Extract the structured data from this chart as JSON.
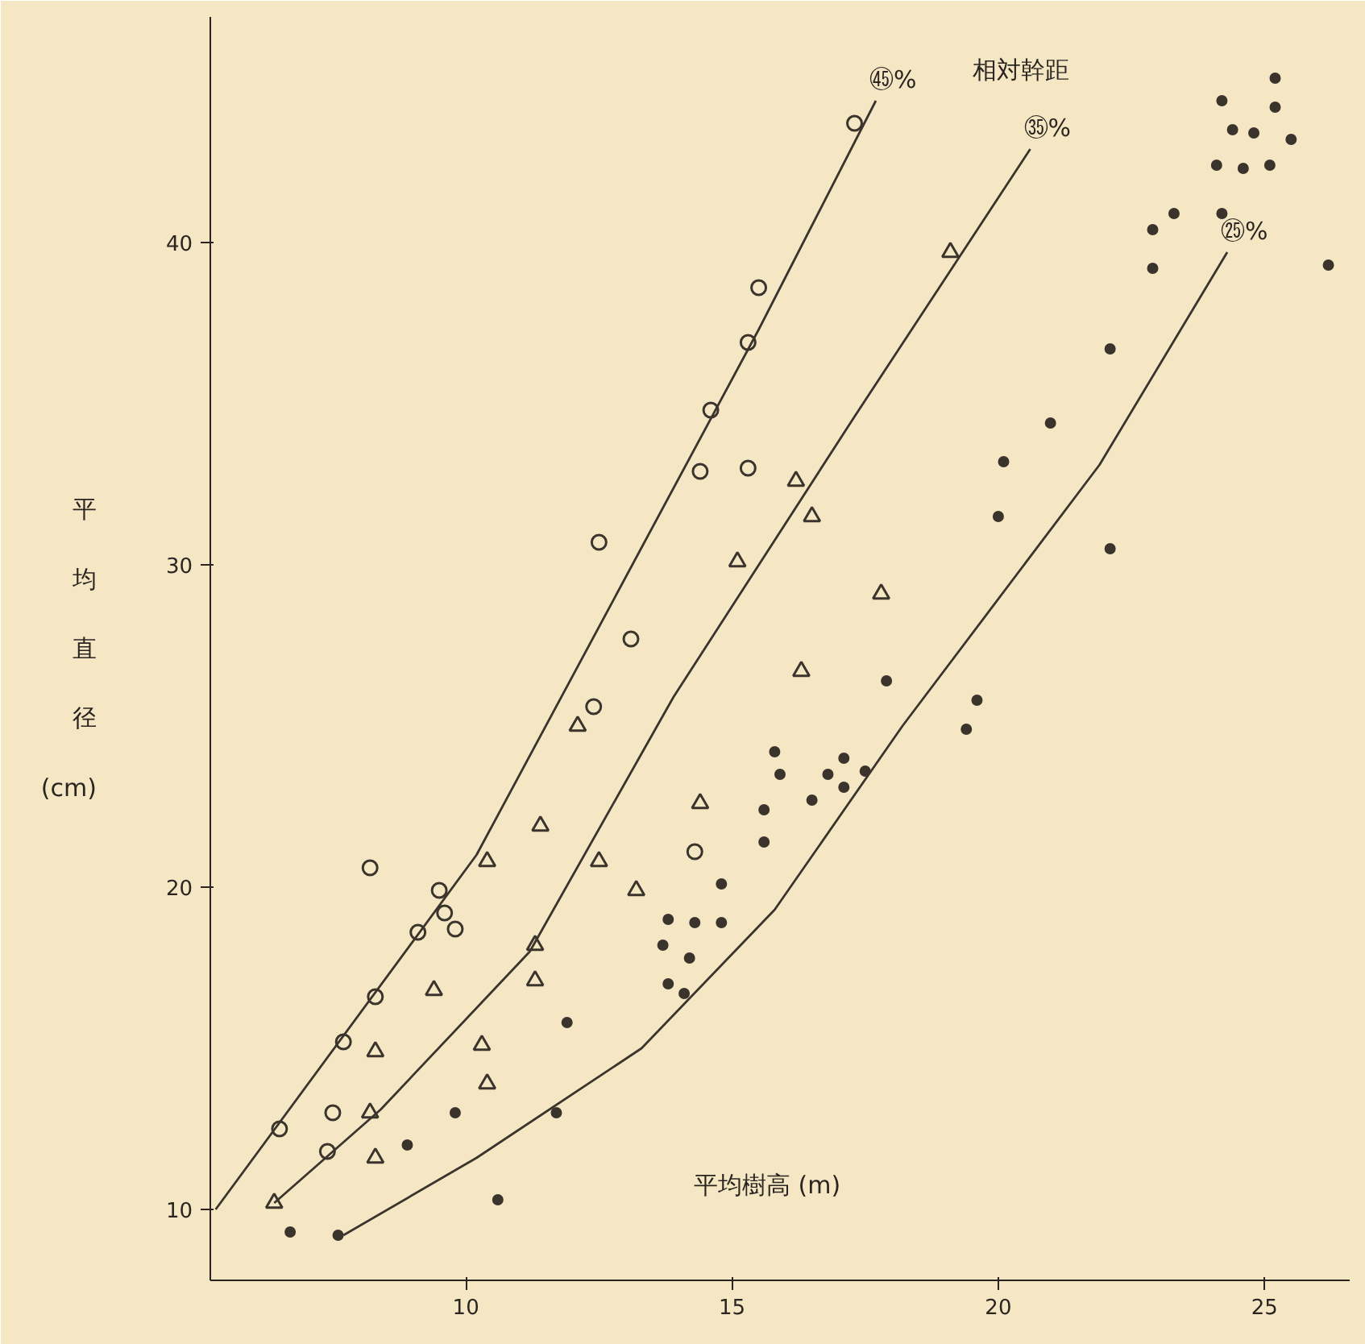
{
  "chart_data": {
    "type": "scatter",
    "xlabel": "平均樹高 (m)",
    "ylabel": "平均直径 (cm)",
    "xlim": [
      5.2,
      26.6
    ],
    "ylim": [
      7.8,
      47
    ],
    "xticks": [
      10,
      15,
      20,
      25
    ],
    "yticks": [
      10,
      20,
      30,
      40
    ],
    "grid": false,
    "legend": false,
    "annotations": [
      "相対幹距"
    ],
    "series": [
      {
        "marker": "circle",
        "color": "#3a342c",
        "x": [
          6.5,
          8.2,
          7.7,
          7.5,
          7.4,
          8.3,
          9.1,
          9.5,
          9.8,
          9.6,
          12.5,
          12.4,
          14.6,
          14.4,
          15.3,
          15.3,
          15.5,
          13.1,
          17.3,
          14.3
        ],
        "values": [
          12.5,
          20.6,
          15.2,
          13.0,
          11.8,
          16.6,
          18.6,
          19.9,
          18.7,
          19.2,
          30.7,
          25.6,
          34.8,
          32.9,
          33.0,
          36.9,
          38.6,
          27.7,
          43.7,
          21.1
        ]
      },
      {
        "marker": "triangle",
        "color": "#3a342c",
        "x": [
          6.4,
          8.3,
          8.2,
          8.3,
          9.4,
          10.4,
          10.3,
          11.3,
          11.3,
          10.4,
          11.4,
          12.5,
          13.2,
          14.4,
          12.1,
          15.1,
          16.2,
          16.5,
          16.3,
          17.8,
          19.1
        ],
        "values": [
          10.2,
          11.6,
          13.0,
          14.9,
          16.8,
          13.9,
          15.1,
          17.1,
          18.2,
          20.8,
          21.9,
          20.8,
          19.9,
          22.6,
          25.0,
          30.1,
          32.6,
          31.5,
          26.7,
          29.1,
          39.7
        ]
      },
      {
        "marker": "dot",
        "color": "#3a342c",
        "x": [
          6.7,
          7.6,
          8.9,
          9.8,
          10.6,
          11.7,
          11.9,
          13.7,
          13.8,
          14.1,
          14.2,
          14.3,
          14.8,
          14.8,
          13.8,
          15.6,
          15.6,
          15.9,
          15.8,
          16.8,
          17.1,
          16.5,
          17.1,
          17.5,
          17.9,
          19.6,
          19.4,
          20.0,
          20.1,
          20.98,
          22.1,
          22.1,
          22.9,
          22.9,
          23.3,
          24.2,
          26.2,
          24.1,
          24.6,
          25.1,
          24.4,
          24.8,
          25.5,
          24.2,
          25.2,
          25.2
        ],
        "values": [
          9.3,
          9.2,
          12.0,
          13.0,
          10.3,
          13.0,
          15.8,
          18.2,
          17.0,
          16.7,
          17.8,
          18.9,
          20.1,
          18.9,
          19.0,
          21.4,
          22.4,
          23.5,
          24.2,
          23.5,
          23.1,
          22.7,
          24.0,
          23.6,
          26.4,
          25.8,
          24.9,
          31.5,
          33.2,
          34.4,
          36.7,
          30.5,
          40.4,
          39.2,
          40.9,
          40.9,
          39.3,
          42.4,
          42.3,
          42.4,
          43.5,
          43.4,
          43.2,
          44.4,
          44.2,
          45.1
        ]
      },
      {
        "type": "line",
        "name": "㊺%",
        "color": "#3a342c",
        "x": [
          5.3,
          10.2,
          15.5,
          17.7
        ],
        "values": [
          10.0,
          21.0,
          37.3,
          44.4
        ]
      },
      {
        "type": "line",
        "name": "㉟%",
        "color": "#3a342c",
        "x": [
          6.4,
          8.4,
          11.2,
          13.9,
          17.3,
          20.6
        ],
        "values": [
          10.2,
          13.1,
          18.0,
          25.9,
          34.6,
          42.9
        ]
      },
      {
        "type": "line",
        "name": "㉕%",
        "color": "#3a342c",
        "x": [
          7.7,
          10.2,
          13.3,
          15.8,
          18.2,
          21.9,
          24.3
        ],
        "values": [
          9.2,
          11.6,
          15.0,
          19.3,
          25.0,
          33.1,
          39.7
        ]
      }
    ]
  }
}
